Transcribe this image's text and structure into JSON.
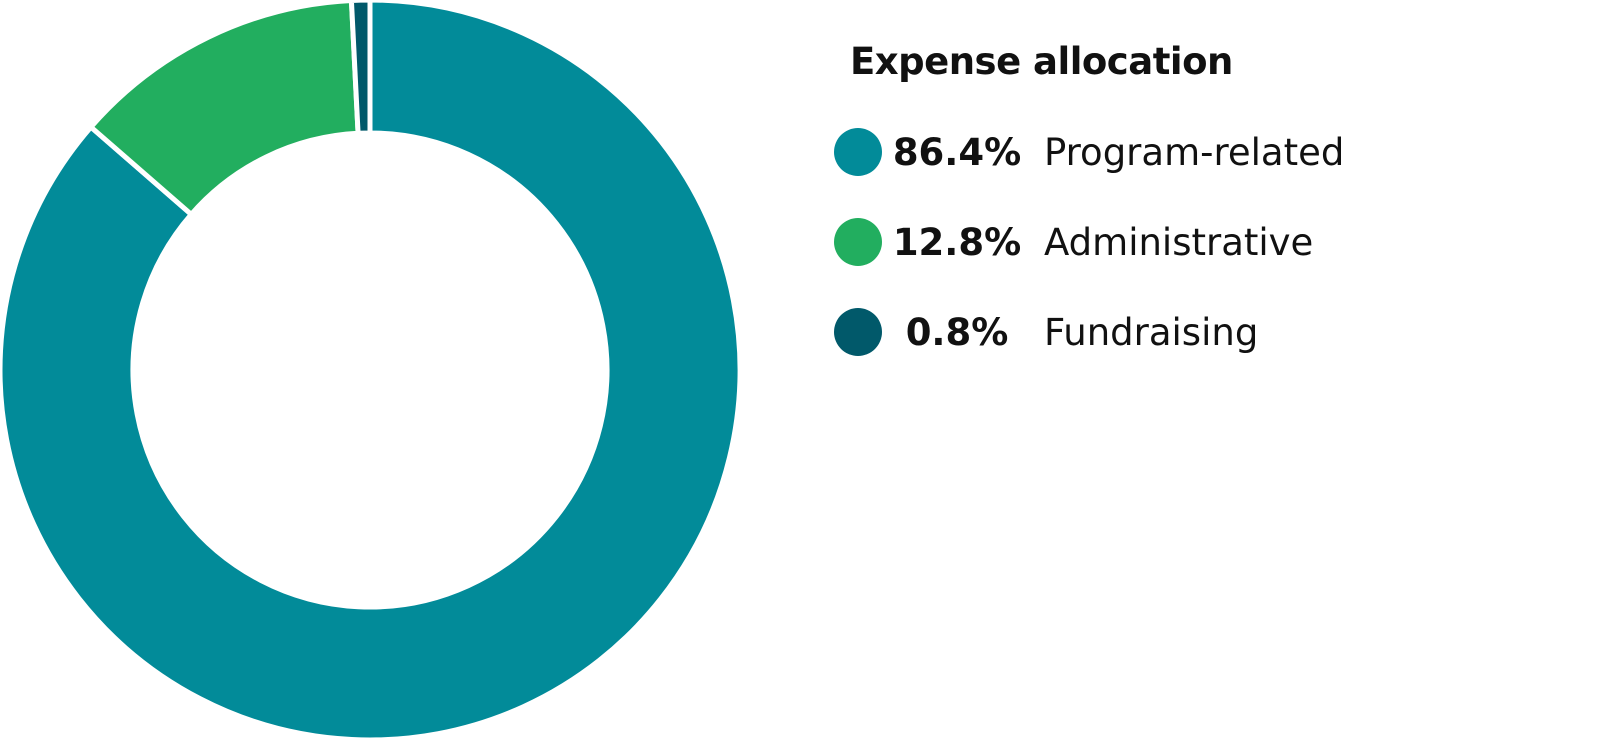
{
  "chart_data": {
    "type": "pie",
    "title": "Expense allocation",
    "slices": [
      {
        "label": "Program-related",
        "value": 86.4,
        "value_text": "86.4%",
        "color": "#028b99"
      },
      {
        "label": "Administrative",
        "value": 12.8,
        "value_text": "12.8%",
        "color": "#22ae5f"
      },
      {
        "label": "Fundraising",
        "value": 0.8,
        "value_text": "0.8%",
        "color": "#01596a"
      }
    ],
    "legend_position": "right"
  }
}
